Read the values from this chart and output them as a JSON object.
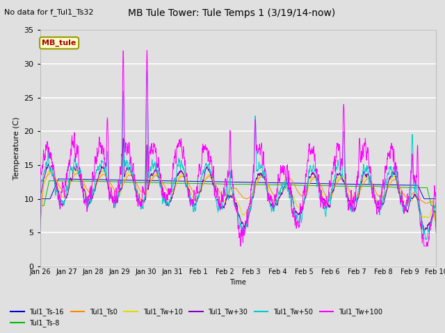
{
  "title": "MB Tule Tower: Tule Temps 1 (3/19/14-now)",
  "subtitle": "No data for f_Tul1_Ts32",
  "ylabel": "Temperature (C)",
  "xlabel": "Time",
  "ylim": [
    0,
    35
  ],
  "yticks": [
    0,
    5,
    10,
    15,
    20,
    25,
    30,
    35
  ],
  "xtick_labels": [
    "Jan 26",
    "Jan 27",
    "Jan 28",
    "Jan 29",
    "Jan 30",
    "Jan 31",
    "Feb 1",
    "Feb 2",
    "Feb 3",
    "Feb 4",
    "Feb 5",
    "Feb 6",
    "Feb 7",
    "Feb 8",
    "Feb 9",
    "Feb 10"
  ],
  "bg_color": "#e0e0e0",
  "series_colors": {
    "Tul1_Ts-16": "#0000cc",
    "Tul1_Ts-8": "#00bb00",
    "Tul1_Ts0": "#ff8800",
    "Tul1_Tw+10": "#dddd00",
    "Tul1_Tw+30": "#8800bb",
    "Tul1_Tw+50": "#00cccc",
    "Tul1_Tw+100": "#ff00ff"
  },
  "annotation_box": {
    "text": "MB_tule",
    "facecolor": "#ffffcc",
    "edgecolor": "#999900",
    "textcolor": "#aa0000"
  }
}
